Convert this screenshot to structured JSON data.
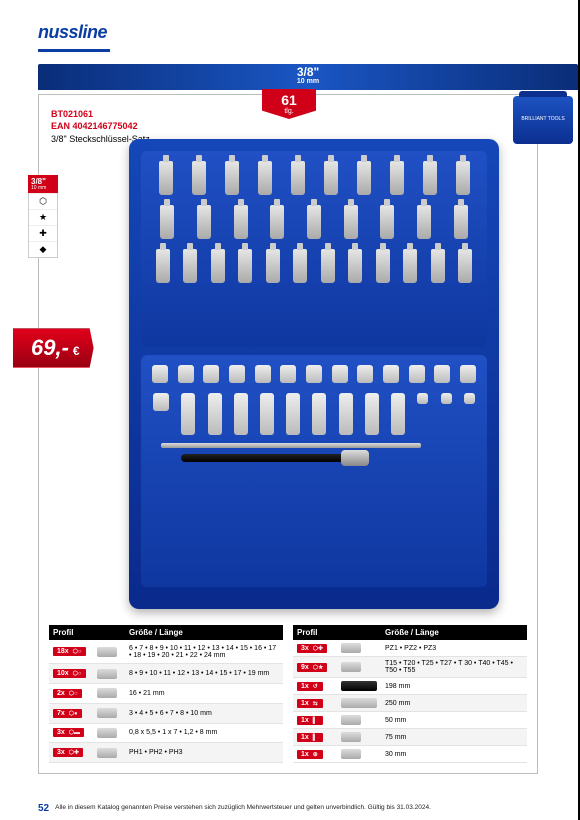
{
  "brand": "nussline",
  "size_bar": {
    "fraction": "3/8\"",
    "mm": "10 mm"
  },
  "pieces": {
    "count": "61",
    "label": "tlg."
  },
  "case_brand": "BRILLIANT TOOLS",
  "product": {
    "sku": "BT021061",
    "ean": "EAN 4042146775042",
    "description": "3/8\" Steckschlüssel-Satz"
  },
  "side_tab": {
    "fraction": "3/8\"",
    "mm": "10 mm",
    "icons": [
      "⬡",
      "★",
      "✚",
      "◆"
    ]
  },
  "price": {
    "amount": "69,-",
    "currency": "€"
  },
  "table_headers": {
    "profil": "Profil",
    "size": "Größe / Länge"
  },
  "table_left": [
    {
      "qty": "18x",
      "sym": "⬡○",
      "size": "6 • 7 • 8 • 9 • 10 • 11 • 12 • 13 • 14 • 15 • 16 • 17 • 18 • 19 • 20 • 21 • 22 • 24 mm"
    },
    {
      "qty": "10x",
      "sym": "⬡○",
      "size": "8 • 9 • 10 • 11 • 12 • 13 • 14 • 15 • 17 • 19 mm"
    },
    {
      "qty": "2x",
      "sym": "⬡○",
      "size": "16 • 21 mm"
    },
    {
      "qty": "7x",
      "sym": "⬡●",
      "size": "3 • 4 • 5 • 6 • 7 • 8 • 10 mm"
    },
    {
      "qty": "3x",
      "sym": "⬡▬",
      "size": "0,8 x 5,5 • 1 x 7 • 1,2 • 8 mm"
    },
    {
      "qty": "3x",
      "sym": "⬡✚",
      "size": "PH1 • PH2 • PH3"
    }
  ],
  "table_right": [
    {
      "qty": "3x",
      "sym": "⬡✚",
      "size": "PZ1 • PZ2 • PZ3"
    },
    {
      "qty": "9x",
      "sym": "⬡★",
      "size": "T15 • T20 • T25 • T27 • T 30 • T40 • T45 • T50 • T55"
    },
    {
      "qty": "1x",
      "sym": "↺",
      "size": "198 mm"
    },
    {
      "qty": "1x",
      "sym": "⇆",
      "size": "250 mm"
    },
    {
      "qty": "1x",
      "sym": "▌",
      "size": "50 mm"
    },
    {
      "qty": "1x",
      "sym": "▌",
      "size": "75 mm"
    },
    {
      "qty": "1x",
      "sym": "⊕",
      "size": "30 mm"
    }
  ],
  "footer": {
    "page": "52",
    "note": "Alle in diesem Katalog genannten Preise verstehen sich zuzüglich Mehrwertsteuer und gelten unverbindlich. Gültig bis 31.03.2024."
  }
}
